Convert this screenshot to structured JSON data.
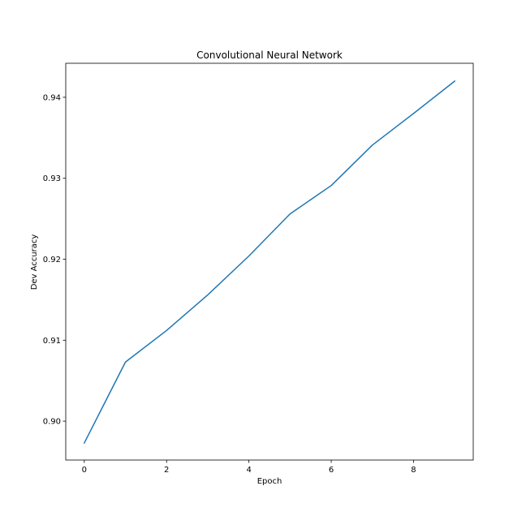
{
  "chart_data": {
    "type": "line",
    "title": "Convolutional Neural Network",
    "xlabel": "Epoch",
    "ylabel": "Dev Accuracy",
    "xlim": [
      -0.45,
      9.45
    ],
    "ylim": [
      0.8952,
      0.9442
    ],
    "xticks": [
      0,
      2,
      4,
      6,
      8
    ],
    "xtick_labels": [
      "0",
      "2",
      "4",
      "6",
      "8"
    ],
    "yticks": [
      0.9,
      0.91,
      0.92,
      0.93,
      0.94
    ],
    "ytick_labels": [
      "0.90",
      "0.91",
      "0.92",
      "0.93",
      "0.94"
    ],
    "grid": false,
    "legend": "none",
    "series": [
      {
        "color": "#1f77b4",
        "x": [
          0,
          1,
          2,
          3,
          4,
          5,
          6,
          7,
          8,
          9
        ],
        "y": [
          0.8973,
          0.9073,
          0.9112,
          0.9156,
          0.9204,
          0.9256,
          0.9291,
          0.9341,
          0.938,
          0.942
        ]
      }
    ]
  }
}
